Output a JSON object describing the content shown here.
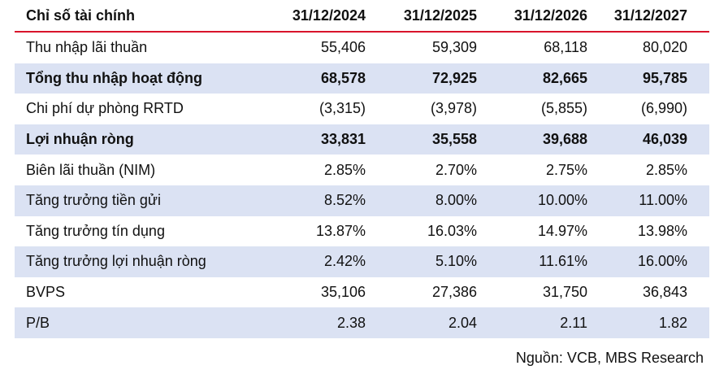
{
  "table": {
    "header": [
      "Chỉ số tài chính",
      "31/12/2024",
      "31/12/2025",
      "31/12/2026",
      "31/12/2027"
    ],
    "rows": [
      {
        "label": "Thu nhập lãi thuần",
        "values": [
          "55,406",
          "59,309",
          "68,118",
          "80,020"
        ],
        "bold": false,
        "shaded": false
      },
      {
        "label": "Tổng thu nhập hoạt động",
        "values": [
          "68,578",
          "72,925",
          "82,665",
          "95,785"
        ],
        "bold": true,
        "shaded": true
      },
      {
        "label": "Chi phí dự phòng RRTD",
        "values": [
          "(3,315)",
          "(3,978)",
          "(5,855)",
          "(6,990)"
        ],
        "bold": false,
        "shaded": false
      },
      {
        "label": "Lợi nhuận ròng",
        "values": [
          "33,831",
          "35,558",
          "39,688",
          "46,039"
        ],
        "bold": true,
        "shaded": true
      },
      {
        "label": "Biên lãi thuần (NIM)",
        "values": [
          "2.85%",
          "2.70%",
          "2.75%",
          "2.85%"
        ],
        "bold": false,
        "shaded": false
      },
      {
        "label": "Tăng trưởng tiền gửi",
        "values": [
          "8.52%",
          "8.00%",
          "10.00%",
          "11.00%"
        ],
        "bold": false,
        "shaded": true
      },
      {
        "label": "Tăng trưởng tín dụng",
        "values": [
          "13.87%",
          "16.03%",
          "14.97%",
          "13.98%"
        ],
        "bold": false,
        "shaded": false
      },
      {
        "label": "Tăng trưởng lợi nhuận ròng",
        "values": [
          "2.42%",
          "5.10%",
          "11.61%",
          "16.00%"
        ],
        "bold": false,
        "shaded": true
      },
      {
        "label": "BVPS",
        "values": [
          "35,106",
          "27,386",
          "31,750",
          "36,843"
        ],
        "bold": false,
        "shaded": false
      },
      {
        "label": "P/B",
        "values": [
          "2.38",
          "2.04",
          "2.11",
          "1.82"
        ],
        "bold": false,
        "shaded": true
      }
    ]
  },
  "source": "Nguồn: VCB, MBS Research",
  "colors": {
    "header_rule": "#d9142b",
    "row_shade": "#dbe2f3"
  }
}
